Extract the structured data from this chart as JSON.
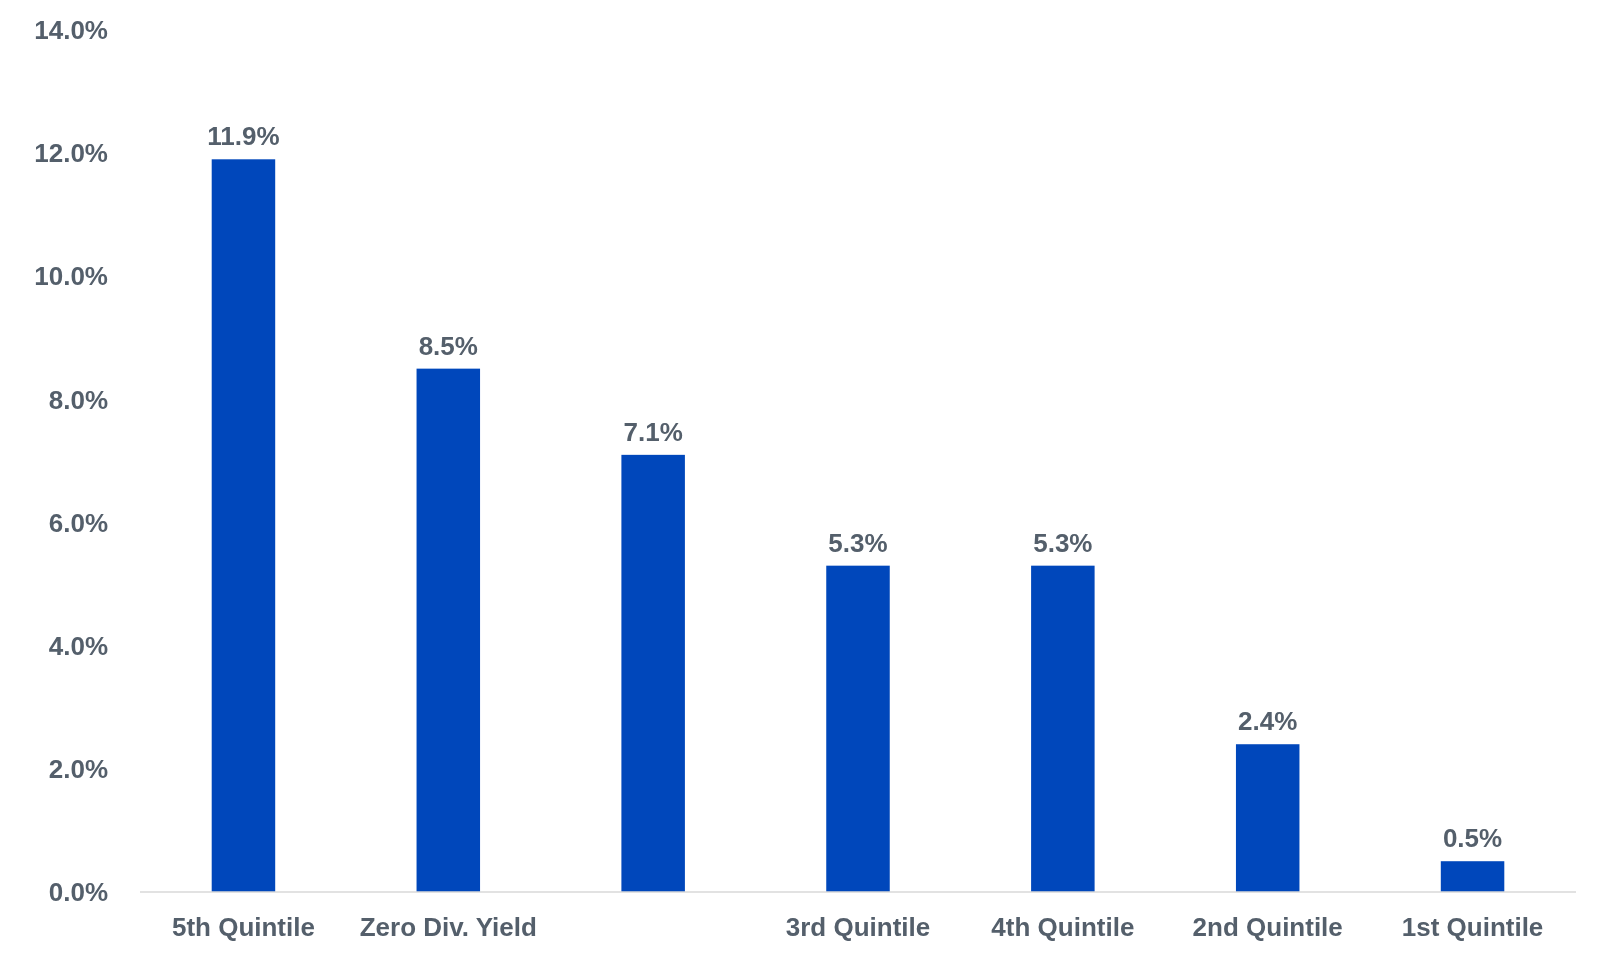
{
  "chart_data": {
    "type": "bar",
    "categories": [
      "5th Quintile",
      "Zero Div. Yield",
      null,
      "3rd Quintile",
      "4th Quintile",
      "2nd Quintile",
      "1st Quintile"
    ],
    "values": [
      11.9,
      8.5,
      7.1,
      5.3,
      5.3,
      2.4,
      0.5
    ],
    "color": "#0047bb",
    "ylim": [
      0,
      14
    ],
    "yticks": [
      {
        "value": 0,
        "label": "0.0%"
      },
      {
        "value": 2,
        "label": "2.0%"
      },
      {
        "value": 4,
        "label": "4.0%"
      },
      {
        "value": 6,
        "label": "6.0%"
      },
      {
        "value": 8,
        "label": "8.0%"
      },
      {
        "value": 10,
        "label": "10.0%"
      },
      {
        "value": 12,
        "label": "12.0%"
      },
      {
        "value": 14,
        "label": "14.0%"
      }
    ],
    "data_labels": true,
    "value_labels": [
      "11.9%",
      "8.5%",
      "7.1%",
      "5.3%",
      "5.3%",
      "2.4%",
      "0.5%"
    ],
    "grid": false
  }
}
